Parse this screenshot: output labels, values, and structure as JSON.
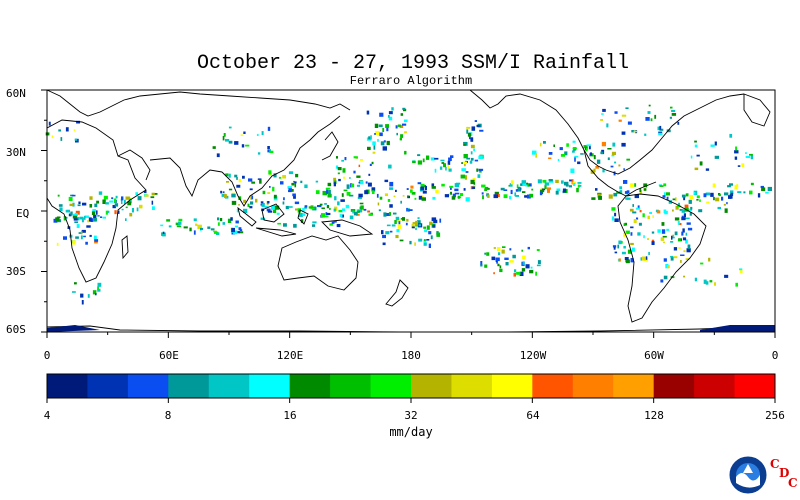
{
  "title": "October 23 - 27, 1993 SSM/I Rainfall",
  "subtitle": "Ferraro Algorithm",
  "lat_labels": [
    "60N",
    "30N",
    "EQ",
    "30S",
    "60S"
  ],
  "lon_labels": [
    "0",
    "60E",
    "120E",
    "180",
    "120W",
    "60W",
    "0"
  ],
  "colorbar": {
    "labels": [
      "4",
      "8",
      "16",
      "32",
      "64",
      "128",
      "256"
    ],
    "unit": "mm/day",
    "colors": [
      "#001a7a",
      "#0033b3",
      "#0a4df0",
      "#009999",
      "#00c6c6",
      "#00ffff",
      "#008a00",
      "#00bf00",
      "#00ee00",
      "#b3b300",
      "#dddd00",
      "#ffff00",
      "#ff5500",
      "#ff7f00",
      "#ffa000",
      "#990000",
      "#cc0000",
      "#ff0000"
    ]
  },
  "logo": {
    "name": "noaa-logo",
    "letters": [
      "C",
      "D",
      "C"
    ]
  }
}
